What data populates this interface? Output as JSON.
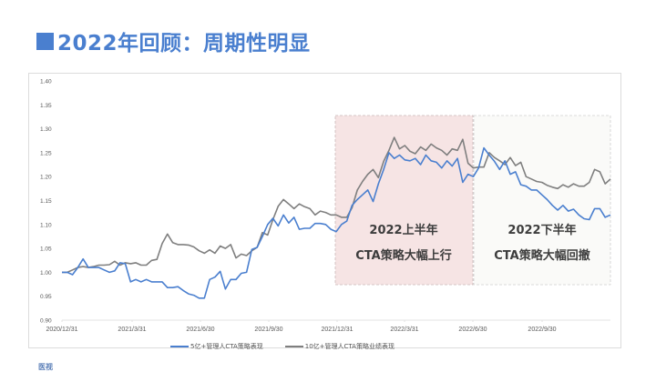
{
  "header": {
    "title": "2022年回顾：周期性明显",
    "accent_color": "#4a7fcf"
  },
  "footer": {
    "logo_text": "医视"
  },
  "chart_data": {
    "type": "line",
    "title": "",
    "xlabel": "",
    "ylabel": "",
    "ylim": [
      0.9,
      1.4
    ],
    "yticks": [
      "1.40",
      "1.35",
      "1.30",
      "1.25",
      "1.20",
      "1.15",
      "1.10",
      "1.05",
      "1.00",
      "0.95",
      "0.90"
    ],
    "xticks": [
      "2020/12/31",
      "2021/3/31",
      "2021/6/30",
      "2021/9/30",
      "2021/12/31",
      "2022/3/31",
      "2022/6/30",
      "2022/9/30"
    ],
    "grid": false,
    "legend_position": "bottom",
    "series": [
      {
        "name": "5亿+管理人CTA策略表现",
        "color": "#4a7fcf",
        "values": [
          1.0,
          1.0,
          0.995,
          1.01,
          1.028,
          1.01,
          1.01,
          1.01,
          1.005,
          1.0,
          1.003,
          1.02,
          1.018,
          0.98,
          0.985,
          0.98,
          0.985,
          0.98,
          0.98,
          0.98,
          0.968,
          0.968,
          0.97,
          0.962,
          0.955,
          0.952,
          0.946,
          0.946,
          0.985,
          0.99,
          1.002,
          0.965,
          0.985,
          0.985,
          0.998,
          1.0,
          1.048,
          1.052,
          1.075,
          1.1,
          1.113,
          1.097,
          1.12,
          1.103,
          1.115,
          1.09,
          1.092,
          1.092,
          1.102,
          1.102,
          1.1,
          1.09,
          1.085,
          1.1,
          1.107,
          1.14,
          1.152,
          1.162,
          1.172,
          1.148,
          1.185,
          1.215,
          1.25,
          1.238,
          1.245,
          1.235,
          1.233,
          1.238,
          1.225,
          1.245,
          1.233,
          1.23,
          1.218,
          1.233,
          1.222,
          1.238,
          1.188,
          1.205,
          1.2,
          1.218,
          1.26,
          1.245,
          1.232,
          1.215,
          1.233,
          1.205,
          1.21,
          1.183,
          1.18,
          1.172,
          1.172,
          1.162,
          1.152,
          1.14,
          1.13,
          1.14,
          1.128,
          1.132,
          1.12,
          1.112,
          1.11,
          1.133,
          1.133,
          1.115,
          1.12
        ]
      },
      {
        "name": "10亿+管理人CTA策略业绩表现",
        "color": "#7f7f7f",
        "values": [
          1.0,
          1.0,
          1.005,
          1.01,
          1.012,
          1.01,
          1.012,
          1.015,
          1.015,
          1.016,
          1.023,
          1.015,
          1.02,
          1.018,
          1.02,
          1.015,
          1.015,
          1.025,
          1.027,
          1.06,
          1.08,
          1.062,
          1.058,
          1.058,
          1.057,
          1.053,
          1.045,
          1.04,
          1.047,
          1.04,
          1.055,
          1.05,
          1.058,
          1.03,
          1.038,
          1.035,
          1.045,
          1.052,
          1.083,
          1.078,
          1.11,
          1.138,
          1.152,
          1.143,
          1.133,
          1.143,
          1.137,
          1.133,
          1.12,
          1.128,
          1.125,
          1.12,
          1.12,
          1.115,
          1.115,
          1.135,
          1.172,
          1.19,
          1.205,
          1.215,
          1.198,
          1.232,
          1.255,
          1.282,
          1.258,
          1.265,
          1.253,
          1.248,
          1.262,
          1.255,
          1.268,
          1.26,
          1.255,
          1.245,
          1.258,
          1.255,
          1.278,
          1.228,
          1.218,
          1.22,
          1.22,
          1.25,
          1.24,
          1.233,
          1.225,
          1.24,
          1.223,
          1.23,
          1.2,
          1.195,
          1.19,
          1.188,
          1.182,
          1.178,
          1.175,
          1.183,
          1.178,
          1.185,
          1.18,
          1.18,
          1.188,
          1.215,
          1.21,
          1.185,
          1.195
        ]
      }
    ],
    "annotations": [
      {
        "region": "2021/12/31–2022/6/30",
        "line1": "2022上半年",
        "line2": "CTA策略大幅上行",
        "fill": "#f6e4e4"
      },
      {
        "region": "2022/6/30–2022/12/31",
        "line1": "2022下半年",
        "line2": "CTA策略大幅回撤",
        "fill": "#fafaf8"
      }
    ]
  }
}
